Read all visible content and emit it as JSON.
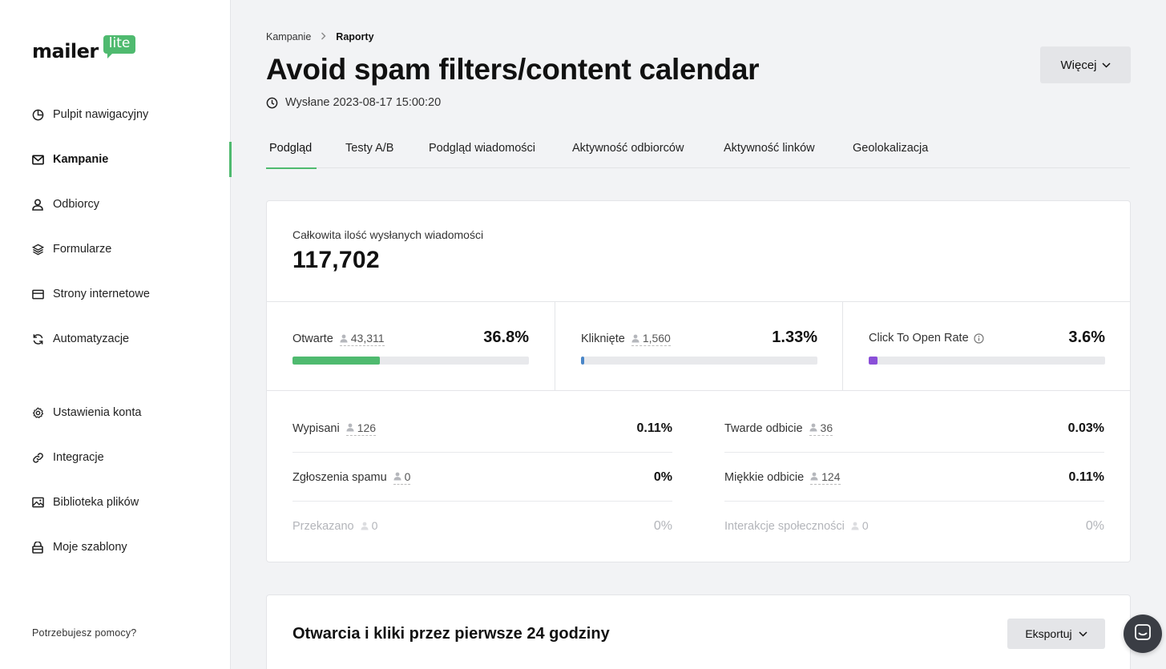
{
  "app": {
    "logo_text": "mailer",
    "logo_badge": "lite",
    "brand_color": "#4fba6f"
  },
  "sidebar": {
    "items": [
      {
        "label": "Pulpit nawigacyjny",
        "icon": "dashboard-icon"
      },
      {
        "label": "Kampanie",
        "icon": "mail-icon",
        "active": true
      },
      {
        "label": "Odbiorcy",
        "icon": "user-icon"
      },
      {
        "label": "Formularze",
        "icon": "layers-icon"
      },
      {
        "label": "Strony internetowe",
        "icon": "browser-icon"
      },
      {
        "label": "Automatyzacje",
        "icon": "refresh-icon"
      },
      {
        "label": "Ustawienia konta",
        "icon": "gear-icon"
      },
      {
        "label": "Integracje",
        "icon": "link-icon"
      },
      {
        "label": "Biblioteka plików",
        "icon": "image-icon"
      },
      {
        "label": "Moje szablony",
        "icon": "template-icon"
      }
    ],
    "help_text": "Potrzebujesz pomocy?"
  },
  "header": {
    "breadcrumb": [
      "Kampanie",
      "Raporty"
    ],
    "title": "Avoid spam filters/content calendar",
    "sent_label": "Wysłane 2023-08-17 15:00:20",
    "more_button": "Więcej"
  },
  "tabs": [
    "Podgląd",
    "Testy A/B",
    "Podgląd wiadomości",
    "Aktywność odbiorców",
    "Aktywność linków",
    "Geolokalizacja"
  ],
  "stats": {
    "total_label": "Całkowita ilość wysłanych wiadomości",
    "total_value": "117,702",
    "metrics": [
      {
        "label": "Otwarte",
        "count": "43,311",
        "pct": "36.8%",
        "fill": 0.368,
        "color": "#4fba6f"
      },
      {
        "label": "Kliknięte",
        "count": "1,560",
        "pct": "1.33%",
        "fill": 0.0133,
        "color": "#4a86c8"
      },
      {
        "label": "Click To Open Rate",
        "count": "",
        "pct": "3.6%",
        "fill": 0.036,
        "color": "#8a4fd8"
      }
    ],
    "details": [
      {
        "label": "Wypisani",
        "count": "126",
        "pct": "0.11%"
      },
      {
        "label": "Twarde odbicie",
        "count": "36",
        "pct": "0.03%"
      },
      {
        "label": "Zgłoszenia spamu",
        "count": "0",
        "pct": "0%"
      },
      {
        "label": "Miękkie odbicie",
        "count": "124",
        "pct": "0.11%"
      },
      {
        "label": "Przekazano",
        "count": "0",
        "pct": "0%"
      },
      {
        "label": "Interakcje społeczności",
        "count": "0",
        "pct": "0%"
      }
    ]
  },
  "chart_section": {
    "title": "Otwarcia i kliki przez pierwsze 24 godziny",
    "export_button": "Eksportuj"
  }
}
